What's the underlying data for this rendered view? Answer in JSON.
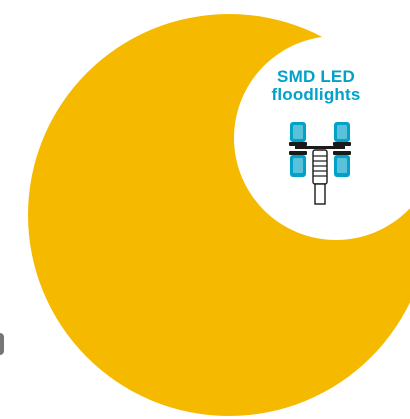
{
  "badge": {
    "title_line1": "SMD LED",
    "title_line2": "floodlights",
    "icon": "smd-led-floodlight-icon"
  },
  "colors": {
    "circle_fill": "#F5BA00",
    "badge_fill": "#ffffff",
    "title_text": "#00A2C7",
    "icon_fill": "#00A2C7"
  }
}
